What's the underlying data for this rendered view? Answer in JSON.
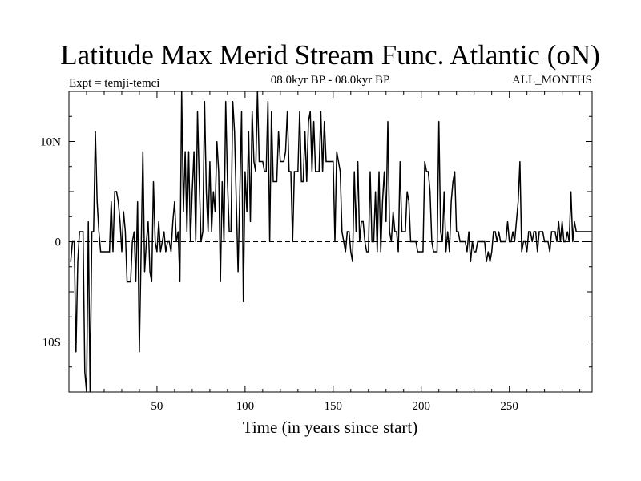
{
  "chart_data": {
    "type": "line",
    "title": "Latitude Max Merid Stream Func. Atlantic (oN)",
    "subtitle_left": "Expt = temji-temci",
    "subtitle_center": "08.0kyr BP - 08.0kyr BP",
    "subtitle_right": "ALL_MONTHS",
    "xlabel": "Time (in years since start)",
    "ylabel": "",
    "xlim": [
      0,
      297
    ],
    "ylim": [
      -15,
      15
    ],
    "x_ticks": [
      {
        "value": 50,
        "label": "50"
      },
      {
        "value": 100,
        "label": "100"
      },
      {
        "value": 150,
        "label": "150"
      },
      {
        "value": 200,
        "label": "200"
      },
      {
        "value": 250,
        "label": "250"
      }
    ],
    "y_ticks": [
      {
        "value": 10,
        "label": "10N"
      },
      {
        "value": 0,
        "label": "0"
      },
      {
        "value": -10,
        "label": "10S"
      }
    ],
    "reference_line": {
      "y": 0,
      "style": "dashed"
    },
    "series": [
      {
        "name": "Latitude of max meridional stream function",
        "x_start": 1,
        "x_step": 1,
        "values": [
          -2,
          0,
          0,
          -11,
          -2,
          1,
          1,
          1,
          -13,
          -15,
          2,
          -15,
          1,
          1,
          11,
          4,
          1,
          -1,
          -1,
          -1,
          -1,
          -1,
          -1,
          4,
          -1,
          5,
          5,
          4,
          2,
          -1,
          3,
          1,
          -4,
          -4,
          -4,
          0,
          1,
          -4,
          4,
          -11,
          -1,
          9,
          -3,
          0,
          2,
          -3,
          -4,
          6,
          0,
          -1,
          2,
          -1,
          0,
          1,
          -1,
          0,
          0,
          -1,
          2,
          4,
          0,
          1,
          -4,
          15,
          3,
          9,
          1,
          9,
          0,
          5,
          9,
          0,
          13,
          6,
          0,
          1,
          14,
          5,
          1,
          8,
          1,
          5,
          3,
          10,
          7,
          -4,
          6,
          0,
          14,
          6,
          1,
          1,
          14,
          11,
          4,
          -3,
          5,
          13,
          -6,
          7,
          3,
          11,
          2,
          13,
          8,
          7,
          15,
          8,
          8,
          8,
          7,
          7,
          14,
          0,
          13,
          6,
          6,
          6,
          11,
          8,
          8,
          8,
          9,
          13,
          7,
          7,
          0,
          7,
          7,
          7,
          13,
          6,
          6,
          11,
          6,
          12,
          13,
          7,
          12,
          7,
          7,
          7,
          13,
          7,
          12,
          8,
          8,
          8,
          8,
          8,
          0,
          9,
          8,
          7,
          1,
          0,
          -1,
          1,
          1,
          -1,
          -2,
          7,
          1,
          8,
          0,
          2,
          2,
          0,
          -1,
          -1,
          7,
          0,
          0,
          5,
          -1,
          7,
          -1,
          4,
          7,
          2,
          12,
          1,
          0,
          3,
          1,
          1,
          -1,
          8,
          1,
          1,
          1,
          5,
          4,
          0,
          0,
          0,
          0,
          -1,
          -1,
          -1,
          -1,
          8,
          7,
          7,
          5,
          0,
          -1,
          -1,
          -1,
          12,
          1,
          0,
          5,
          -1,
          1,
          -1,
          4,
          6,
          7,
          1,
          1,
          0,
          0,
          0,
          0,
          -1,
          1,
          -2,
          0,
          -1,
          -1,
          0,
          0,
          0,
          0,
          0,
          -2,
          -1,
          -2,
          -1,
          1,
          1,
          0,
          1,
          0,
          0,
          0,
          0,
          2,
          0,
          0,
          1,
          0,
          2,
          4,
          8,
          -1,
          0,
          0,
          -1,
          1,
          1,
          0,
          1,
          1,
          -1,
          1,
          1,
          1,
          0,
          0,
          0,
          -1,
          1,
          1,
          1,
          0,
          2,
          0,
          2,
          0,
          0,
          1,
          0,
          5,
          0,
          2,
          1,
          1,
          1,
          1,
          1,
          1,
          1,
          1,
          1,
          1
        ]
      }
    ]
  }
}
